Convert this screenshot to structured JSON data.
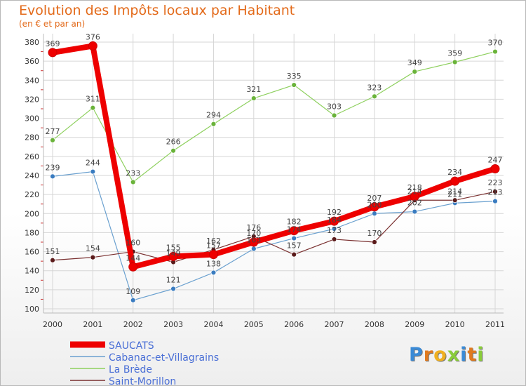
{
  "title": "Evolution des Impôts locaux par Habitant",
  "subtitle": "(en € et par an)",
  "logo_text": "Proxiti",
  "chart_data": {
    "type": "line",
    "title": "Evolution des Impôts locaux par Habitant",
    "ylabel": "(en € et par an)",
    "xlabel": "",
    "ylim": [
      100,
      380
    ],
    "yticks": [
      100,
      120,
      140,
      160,
      180,
      200,
      220,
      240,
      260,
      280,
      300,
      320,
      340,
      360,
      380
    ],
    "categories": [
      "2000",
      "2001",
      "2002",
      "2003",
      "2004",
      "2005",
      "2006",
      "2007",
      "2008",
      "2009",
      "2010",
      "2011"
    ],
    "grid": true,
    "legend_position": "bottom-left",
    "series": [
      {
        "name": "Cabanac-et-Villagrains",
        "color": "#6aa0cf",
        "marker": "#3a7cc0",
        "values": [
          239,
          244,
          109,
          121,
          138,
          163,
          174,
          184,
          200,
          202,
          211,
          213
        ],
        "labels": [
          "239",
          "244",
          "109",
          "121",
          "138",
          "163",
          "174",
          "184",
          "200",
          "202",
          "211",
          "213"
        ]
      },
      {
        "name": "La Brède",
        "color": "#8ed05e",
        "marker": "#6ab33a",
        "values": [
          277,
          311,
          233,
          266,
          294,
          321,
          335,
          303,
          323,
          349,
          359,
          370
        ],
        "labels": [
          "277",
          "311",
          "233",
          "266",
          "294",
          "321",
          "335",
          "303",
          "323",
          "349",
          "359",
          "370"
        ]
      },
      {
        "name": "Saint-Morillon",
        "color": "#7a3030",
        "marker": "#5a1a1a",
        "values": [
          151,
          154,
          160,
          149,
          162,
          176,
          157,
          173,
          170,
          214,
          214,
          223
        ],
        "labels": [
          "151",
          "154",
          "160",
          "149",
          "162",
          "176",
          "157",
          "173",
          "170",
          "214",
          "214",
          "223"
        ]
      },
      {
        "name": "SAUCATS",
        "color": "#ee0000",
        "marker": "#ee0000",
        "bold": true,
        "values": [
          369,
          376,
          144,
          155,
          157,
          170,
          182,
          192,
          207,
          218,
          234,
          247
        ],
        "labels": [
          "369",
          "376",
          "144",
          "155",
          "157",
          "170",
          "182",
          "192",
          "207",
          "218",
          "234",
          "247"
        ]
      }
    ],
    "legend_order": [
      "SAUCATS",
      "Cabanac-et-Villagrains",
      "La Brède",
      "Saint-Morillon"
    ]
  }
}
